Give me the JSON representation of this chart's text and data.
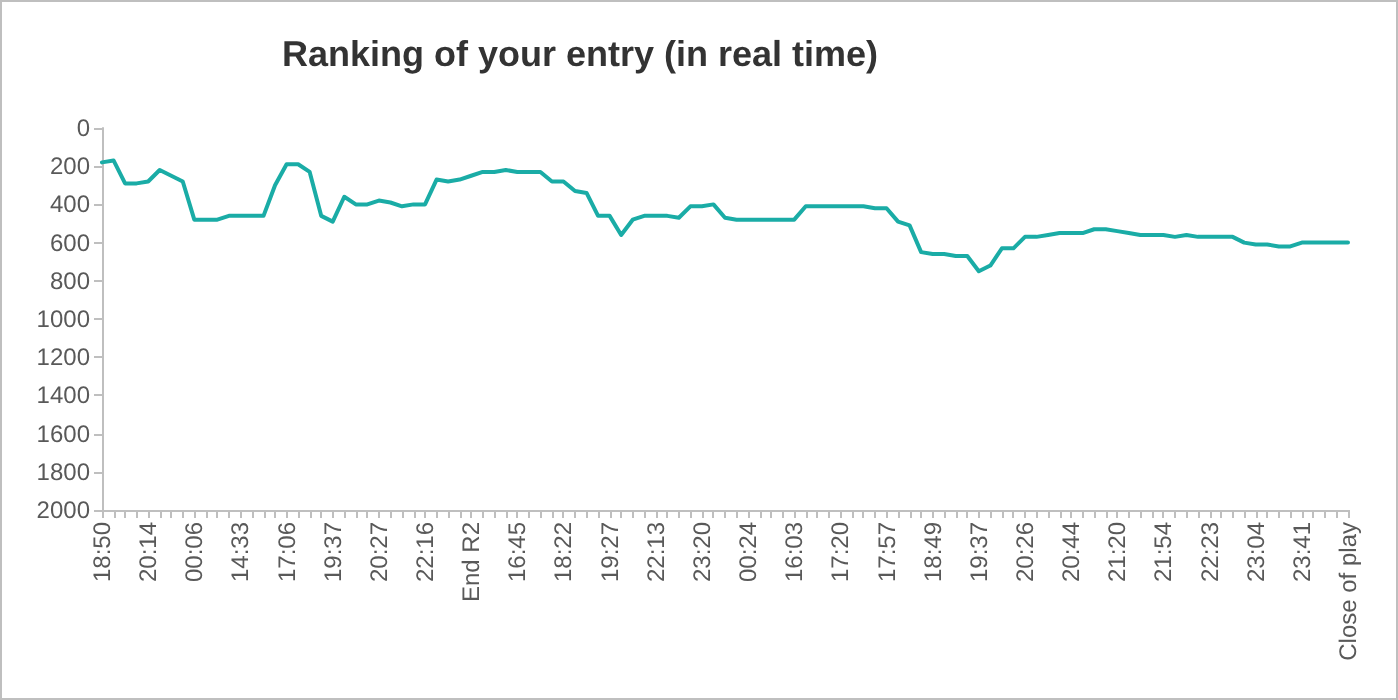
{
  "chart_data": {
    "type": "line",
    "title": "Ranking of your entry (in real time)",
    "categories": [
      "18:50",
      null,
      null,
      null,
      "20:14",
      null,
      null,
      null,
      "00:06",
      null,
      null,
      null,
      "14:33",
      null,
      null,
      null,
      "17:06",
      null,
      null,
      null,
      "19:37",
      null,
      null,
      null,
      "20:27",
      null,
      null,
      null,
      "22:16",
      null,
      null,
      null,
      "End R2",
      null,
      null,
      null,
      "16:45",
      null,
      null,
      null,
      "18:22",
      null,
      null,
      null,
      "19:27",
      null,
      null,
      null,
      "22:13",
      null,
      null,
      null,
      "23:20",
      null,
      null,
      null,
      "00:24",
      null,
      null,
      null,
      "16:03",
      null,
      null,
      null,
      "17:20",
      null,
      null,
      null,
      "17:57",
      null,
      null,
      null,
      "18:49",
      null,
      null,
      null,
      "19:37",
      null,
      null,
      null,
      "20:26",
      null,
      null,
      null,
      "20:44",
      null,
      null,
      null,
      "21:20",
      null,
      null,
      null,
      "21:54",
      null,
      null,
      null,
      "22:23",
      null,
      null,
      null,
      "23:04",
      null,
      null,
      null,
      "23:41",
      null,
      null,
      null,
      "Close of play"
    ],
    "series": [
      {
        "color": "#1aaca6",
        "values": [
          180,
          170,
          290,
          290,
          280,
          220,
          250,
          280,
          480,
          480,
          480,
          460,
          460,
          460,
          460,
          300,
          190,
          190,
          230,
          460,
          490,
          360,
          400,
          400,
          380,
          390,
          410,
          400,
          400,
          270,
          280,
          270,
          250,
          230,
          230,
          220,
          230,
          230,
          230,
          280,
          280,
          330,
          340,
          460,
          460,
          560,
          480,
          460,
          460,
          460,
          470,
          410,
          410,
          400,
          470,
          480,
          480,
          480,
          480,
          480,
          480,
          410,
          410,
          410,
          410,
          410,
          410,
          420,
          420,
          490,
          510,
          650,
          660,
          660,
          670,
          670,
          750,
          720,
          630,
          630,
          570,
          570,
          560,
          550,
          550,
          550,
          530,
          530,
          540,
          550,
          560,
          560,
          560,
          570,
          560,
          570,
          570,
          570,
          570,
          600,
          610,
          610,
          620,
          620,
          600,
          600,
          600,
          600,
          600
        ]
      }
    ],
    "ylim": [
      2000,
      0
    ],
    "yticks": [
      0,
      200,
      400,
      600,
      800,
      1000,
      1200,
      1400,
      1600,
      1800,
      2000
    ],
    "marker": "none",
    "line_style": "solid"
  }
}
